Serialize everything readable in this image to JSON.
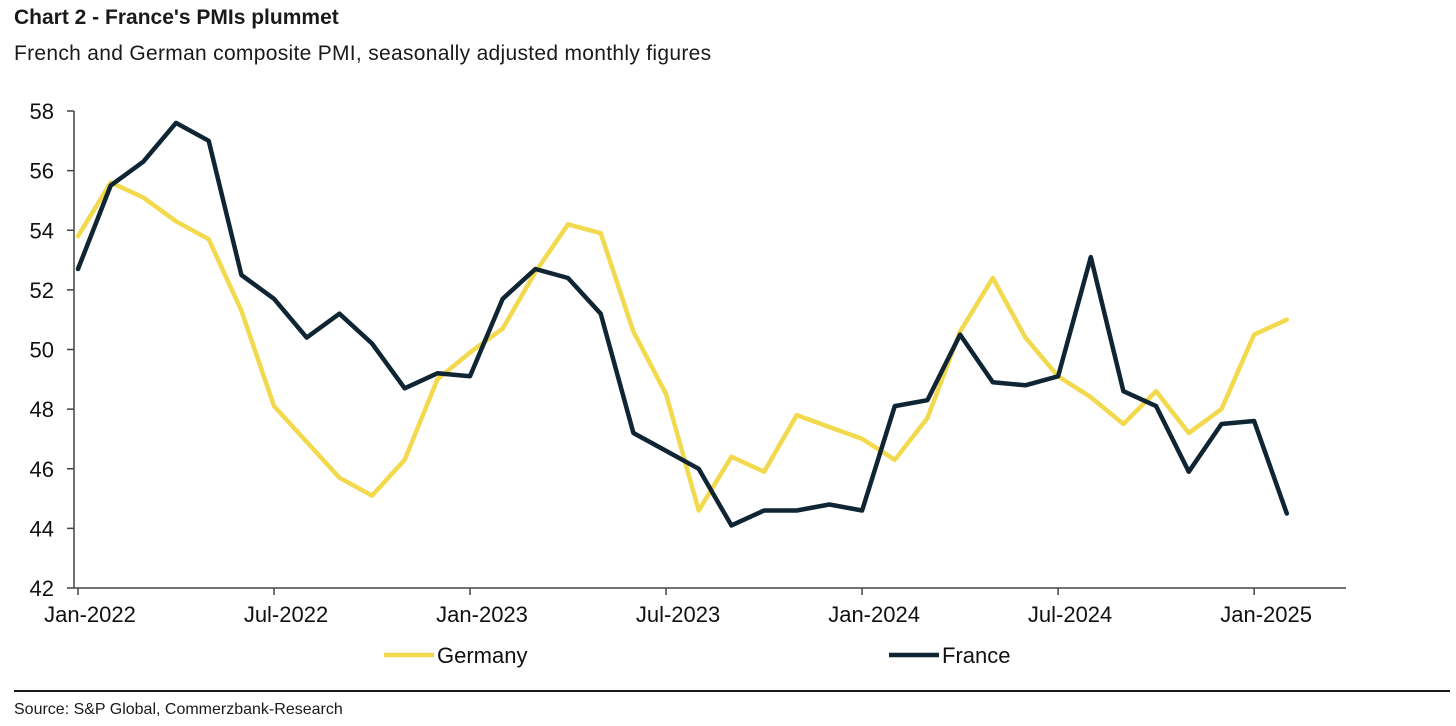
{
  "header": {
    "title": "Chart 2 - France's PMIs plummet",
    "subtitle": "French and German composite PMI, seasonally adjusted monthly figures"
  },
  "footer": {
    "source": "Source: S&P Global, Commerzbank-Research"
  },
  "chart_data": {
    "type": "line",
    "title": "Chart 2 - France's PMIs plummet",
    "subtitle": "French and German composite PMI, seasonally adjusted monthly figures",
    "xlabel": "",
    "ylabel": "",
    "ylim": [
      42,
      58
    ],
    "yticks": [
      42,
      44,
      46,
      48,
      50,
      52,
      54,
      56,
      58
    ],
    "xtick_labels": [
      "Jan-2022",
      "Jul-2022",
      "Jan-2023",
      "Jul-2023",
      "Jan-2024",
      "Jul-2024",
      "Jan-2025"
    ],
    "grid": false,
    "legend_position": "bottom",
    "x": [
      "Jan-2022",
      "Feb-2022",
      "Mar-2022",
      "Apr-2022",
      "May-2022",
      "Jun-2022",
      "Jul-2022",
      "Aug-2022",
      "Sep-2022",
      "Oct-2022",
      "Nov-2022",
      "Dec-2022",
      "Jan-2023",
      "Feb-2023",
      "Mar-2023",
      "Apr-2023",
      "May-2023",
      "Jun-2023",
      "Jul-2023",
      "Aug-2023",
      "Sep-2023",
      "Oct-2023",
      "Nov-2023",
      "Dec-2023",
      "Jan-2024",
      "Feb-2024",
      "Mar-2024",
      "Apr-2024",
      "May-2024",
      "Jun-2024",
      "Jul-2024",
      "Aug-2024",
      "Sep-2024",
      "Oct-2024",
      "Nov-2024",
      "Dec-2024",
      "Jan-2025",
      "Feb-2025"
    ],
    "series": [
      {
        "name": "Germany",
        "color": "#f2d94e",
        "values": [
          53.8,
          55.6,
          55.1,
          54.3,
          53.7,
          51.3,
          48.1,
          46.9,
          45.7,
          45.1,
          46.3,
          49.0,
          49.9,
          50.7,
          52.6,
          54.2,
          53.9,
          50.6,
          48.5,
          44.6,
          46.4,
          45.9,
          47.8,
          47.4,
          47.0,
          46.3,
          47.7,
          50.6,
          52.4,
          50.4,
          49.1,
          48.4,
          47.5,
          48.6,
          47.2,
          48.0,
          50.5,
          51.0
        ]
      },
      {
        "name": "France",
        "color": "#0f2533",
        "values": [
          52.7,
          55.5,
          56.3,
          57.6,
          57.0,
          52.5,
          51.7,
          50.4,
          51.2,
          50.2,
          48.7,
          49.2,
          49.1,
          51.7,
          52.7,
          52.4,
          51.2,
          47.2,
          46.6,
          46.0,
          44.1,
          44.6,
          44.6,
          44.8,
          44.6,
          48.1,
          48.3,
          50.5,
          48.9,
          48.8,
          49.1,
          53.1,
          48.6,
          48.1,
          45.9,
          47.5,
          47.6,
          44.5
        ]
      }
    ]
  }
}
